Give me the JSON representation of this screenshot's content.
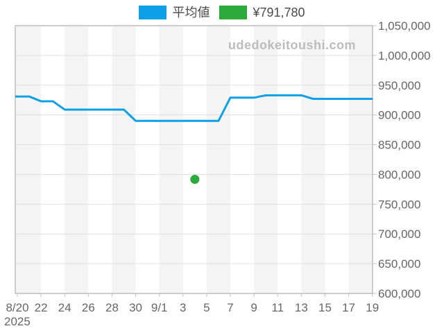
{
  "watermark": "udedokeitoushi.com",
  "legend": {
    "series1": {
      "label": "平均値",
      "color": "#0da0e6"
    },
    "series2": {
      "label": "¥791,780",
      "color": "#2bab3c"
    }
  },
  "chart_data": {
    "type": "line",
    "title": "",
    "xlabel": "",
    "ylabel": "",
    "x_axis_year": "2025",
    "x_tick_labels": [
      "8/20",
      "22",
      "24",
      "26",
      "28",
      "30",
      "9/1",
      "3",
      "5",
      "7",
      "9",
      "11",
      "13",
      "15",
      "17",
      "19"
    ],
    "y_tick_labels": [
      "600,000",
      "650,000",
      "700,000",
      "750,000",
      "800,000",
      "850,000",
      "900,000",
      "950,000",
      "1,000,000",
      "1,050,000"
    ],
    "y_tick_values": [
      600000,
      650000,
      700000,
      750000,
      800000,
      850000,
      900000,
      950000,
      1000000,
      1050000
    ],
    "ylim": [
      600000,
      1050000
    ],
    "grid": true,
    "legend_position": "top",
    "background_stripes": "alternating 2-day vertical bands",
    "dates": [
      "8/20",
      "8/21",
      "8/22",
      "8/23",
      "8/24",
      "8/25",
      "8/26",
      "8/27",
      "8/28",
      "8/29",
      "8/30",
      "8/31",
      "9/1",
      "9/2",
      "9/3",
      "9/4",
      "9/5",
      "9/6",
      "9/7",
      "9/8",
      "9/9",
      "9/10",
      "9/11",
      "9/12",
      "9/13",
      "9/14",
      "9/15",
      "9/16",
      "9/17",
      "9/18",
      "9/19"
    ],
    "series": [
      {
        "name": "平均値",
        "color": "#0da0e6",
        "values": [
          931000,
          931000,
          923000,
          923000,
          909000,
          909000,
          909000,
          909000,
          909000,
          909000,
          890000,
          890000,
          890000,
          890000,
          890000,
          890000,
          890000,
          890000,
          929000,
          929000,
          929000,
          933000,
          933000,
          933000,
          933000,
          927000,
          927000,
          927000,
          927000,
          927000,
          927000
        ]
      }
    ],
    "point_marker": {
      "name": "listing-price",
      "date": "9/4",
      "value": 791780,
      "label": "¥791,780",
      "color": "#2bab3c"
    }
  },
  "style": {
    "stripe_color": "#f4f4f4",
    "grid_color": "#e0e0e0",
    "border_color": "#bdbdbd",
    "tick_color": "#c4c4c4"
  }
}
